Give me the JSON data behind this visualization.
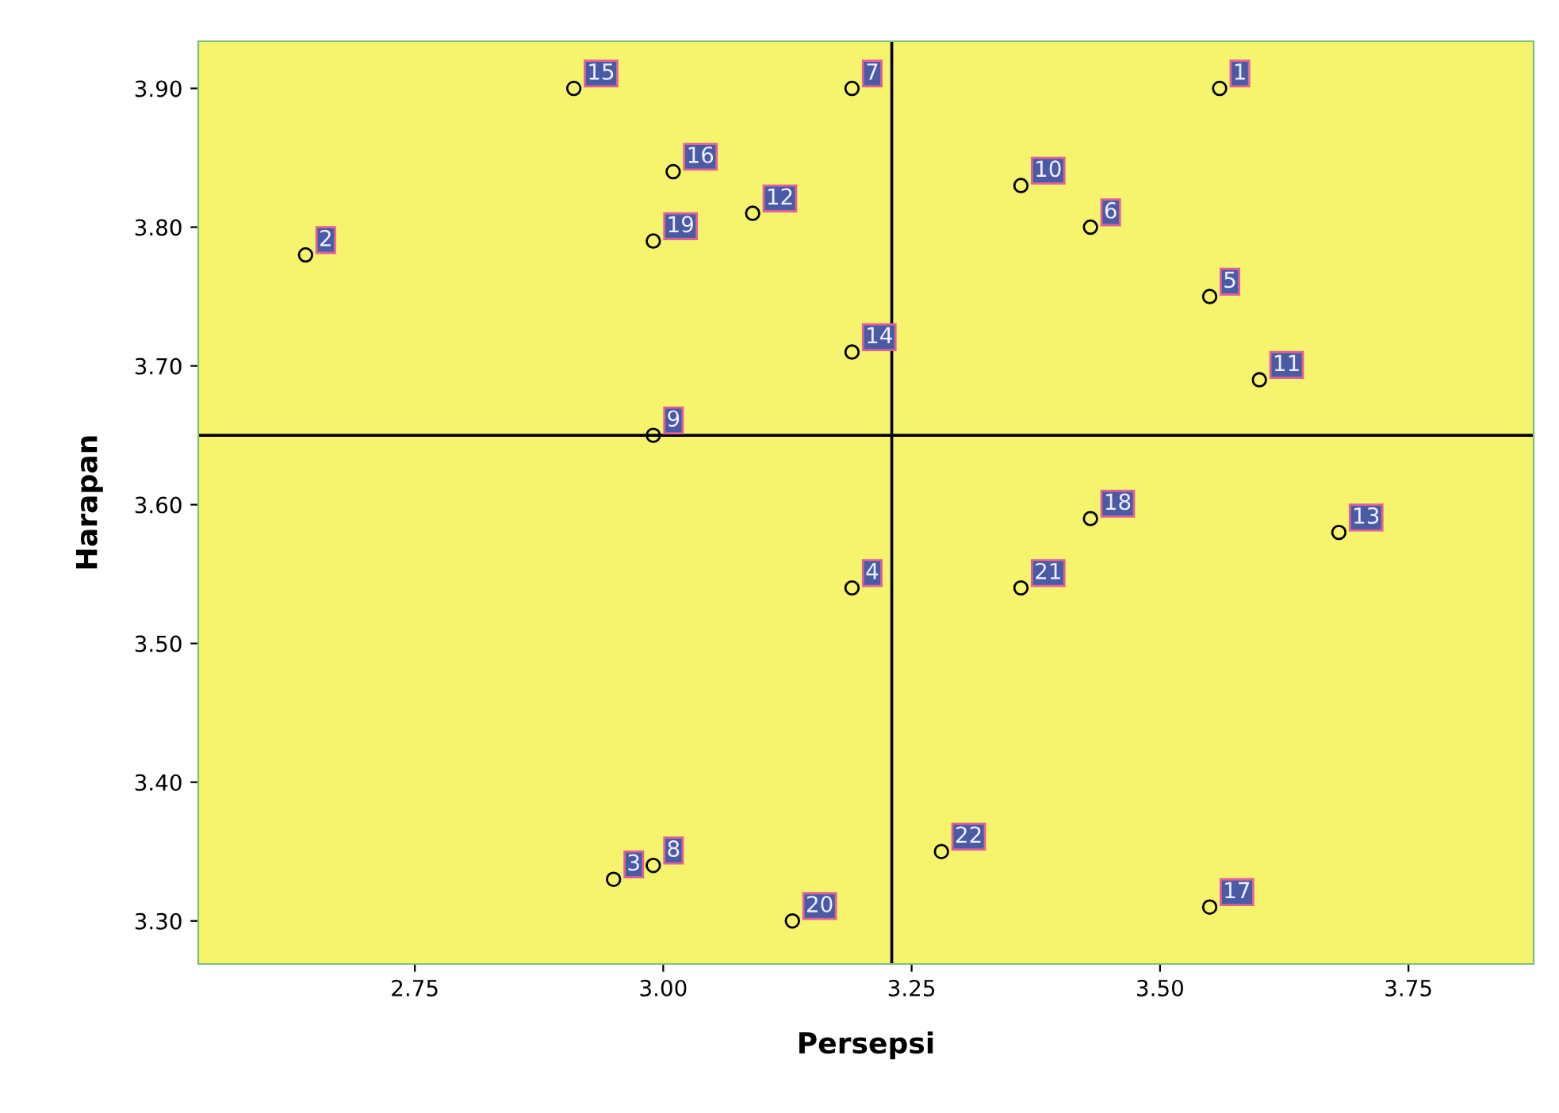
{
  "chart_data": {
    "type": "scatter",
    "xlabel": "Persepsi",
    "ylabel": "Harapan",
    "x": [
      3.56,
      2.64,
      2.95,
      3.19,
      3.55,
      3.43,
      3.19,
      2.99,
      2.99,
      3.36,
      3.6,
      3.09,
      3.68,
      3.19,
      2.91,
      3.01,
      3.55,
      3.43,
      2.99,
      3.13,
      3.36,
      3.28
    ],
    "series": [
      {
        "color": "#000000",
        "values": [
          3.9,
          3.78,
          3.33,
          3.54,
          3.75,
          3.8,
          3.9,
          3.34,
          3.65,
          3.83,
          3.69,
          3.81,
          3.58,
          3.71,
          3.9,
          3.84,
          3.31,
          3.59,
          3.79,
          3.3,
          3.54,
          3.35
        ]
      }
    ],
    "marker": "circle",
    "annotations": [
      {
        "text": "1",
        "x": 3.56,
        "y": 3.9
      },
      {
        "text": "2",
        "x": 2.64,
        "y": 3.78
      },
      {
        "text": "3",
        "x": 2.95,
        "y": 3.33
      },
      {
        "text": "4",
        "x": 3.19,
        "y": 3.54
      },
      {
        "text": "5",
        "x": 3.55,
        "y": 3.75
      },
      {
        "text": "6",
        "x": 3.43,
        "y": 3.8
      },
      {
        "text": "7",
        "x": 3.19,
        "y": 3.9
      },
      {
        "text": "8",
        "x": 2.99,
        "y": 3.34
      },
      {
        "text": "9",
        "x": 2.99,
        "y": 3.65
      },
      {
        "text": "10",
        "x": 3.36,
        "y": 3.83
      },
      {
        "text": "11",
        "x": 3.6,
        "y": 3.69
      },
      {
        "text": "12",
        "x": 3.09,
        "y": 3.81
      },
      {
        "text": "13",
        "x": 3.68,
        "y": 3.58
      },
      {
        "text": "14",
        "x": 3.19,
        "y": 3.71
      },
      {
        "text": "15",
        "x": 2.91,
        "y": 3.9
      },
      {
        "text": "16",
        "x": 3.01,
        "y": 3.84
      },
      {
        "text": "17",
        "x": 3.55,
        "y": 3.31
      },
      {
        "text": "18",
        "x": 3.43,
        "y": 3.59
      },
      {
        "text": "19",
        "x": 2.99,
        "y": 3.79
      },
      {
        "text": "20",
        "x": 3.13,
        "y": 3.3
      },
      {
        "text": "21",
        "x": 3.36,
        "y": 3.54
      },
      {
        "text": "22",
        "x": 3.28,
        "y": 3.35
      }
    ],
    "ref_lines": [
      {
        "axis": "x",
        "value": 3.23,
        "color": "#000000"
      },
      {
        "axis": "y",
        "value": 3.65,
        "color": "#000000"
      }
    ],
    "xlim": [
      2.532,
      3.876
    ],
    "ylim": [
      3.269,
      3.934
    ],
    "xticks": [
      2.75,
      {
        "value": 3.0,
        "label": "3.00"
      },
      3.25,
      {
        "value": 3.5,
        "label": "3.50"
      },
      3.75
    ],
    "yticks": [
      {
        "value": 3.3,
        "label": "3.30"
      },
      {
        "value": 3.4,
        "label": "3.40"
      },
      {
        "value": 3.5,
        "label": "3.50"
      },
      {
        "value": 3.6,
        "label": "3.60"
      },
      {
        "value": 3.7,
        "label": "3.70"
      },
      {
        "value": 3.8,
        "label": "3.80"
      },
      {
        "value": 3.9,
        "label": "3.90"
      }
    ],
    "grid": false,
    "legend": false
  }
}
